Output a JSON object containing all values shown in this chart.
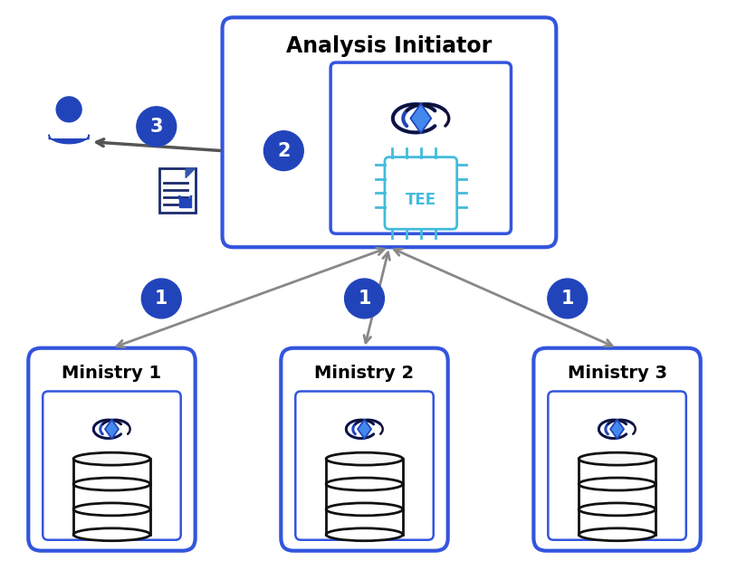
{
  "title": "Analysis Initiator",
  "ministry_labels": [
    "Ministry 1",
    "Ministry 2",
    "Ministry 3"
  ],
  "bg_color": "#ffffff",
  "box_border_color": "#3355dd",
  "box_fill_color": "#ffffff",
  "main_box_fill": "#ffffff",
  "tee_border_color": "#44bbdd",
  "circle_color": "#2244bb",
  "circle_text_color": "#ffffff",
  "arrow_color": "#888888",
  "dark_blue": "#1a2a6c",
  "title_fontsize": 17,
  "ministry_fontsize": 14,
  "circle_fontsize": 15
}
